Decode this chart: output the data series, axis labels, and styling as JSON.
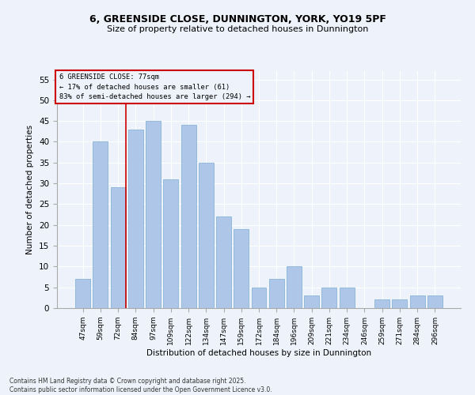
{
  "title1": "6, GREENSIDE CLOSE, DUNNINGTON, YORK, YO19 5PF",
  "title2": "Size of property relative to detached houses in Dunnington",
  "xlabel": "Distribution of detached houses by size in Dunnington",
  "ylabel": "Number of detached properties",
  "categories": [
    "47sqm",
    "59sqm",
    "72sqm",
    "84sqm",
    "97sqm",
    "109sqm",
    "122sqm",
    "134sqm",
    "147sqm",
    "159sqm",
    "172sqm",
    "184sqm",
    "196sqm",
    "209sqm",
    "221sqm",
    "234sqm",
    "246sqm",
    "259sqm",
    "271sqm",
    "284sqm",
    "296sqm"
  ],
  "values": [
    7,
    40,
    29,
    43,
    45,
    31,
    44,
    35,
    22,
    19,
    5,
    7,
    10,
    3,
    5,
    5,
    0,
    2,
    2,
    3,
    3
  ],
  "bar_color": "#aec6e8",
  "bar_edgecolor": "#8ab4d8",
  "vline_index": 2,
  "vline_color": "#cc0000",
  "box_edgecolor": "#cc0000",
  "annotation_line1": "6 GREENSIDE CLOSE: 77sqm",
  "annotation_line2": "← 17% of detached houses are smaller (61)",
  "annotation_line3": "83% of semi-detached houses are larger (294) →",
  "ylim": [
    0,
    57
  ],
  "yticks": [
    0,
    5,
    10,
    15,
    20,
    25,
    30,
    35,
    40,
    45,
    50,
    55
  ],
  "background_color": "#eef2fa",
  "grid_color": "#ffffff",
  "footer1": "Contains HM Land Registry data © Crown copyright and database right 2025.",
  "footer2": "Contains public sector information licensed under the Open Government Licence v3.0."
}
